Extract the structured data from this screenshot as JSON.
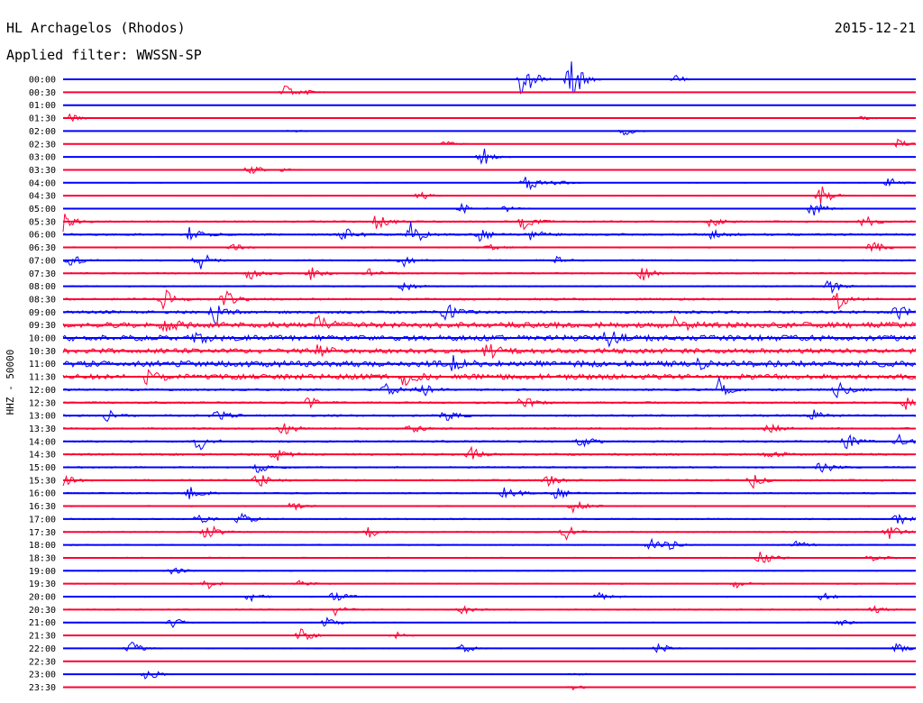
{
  "header": {
    "station": "HL Archagelos (Rhodos)",
    "date": "2015-12-21",
    "filter": "Applied filter: WWSSN-SP"
  },
  "colors": {
    "trace_a": "#0000ff",
    "trace_b": "#ff0033",
    "background": "#ffffff",
    "text": "#000000"
  },
  "chart_data": {
    "type": "line",
    "title": "HL Archagelos (Rhodos)",
    "subtitle": "Applied filter: WWSSN-SP",
    "ylabel": "HHZ - 50000",
    "xlabel": "",
    "grid": false,
    "row_interval_minutes": 30,
    "series": [
      {
        "name": "00:00",
        "color": "trace_a",
        "activity": 0.05,
        "events": [
          [
            0.54,
            7
          ],
          [
            0.595,
            8
          ],
          [
            0.72,
            1.2
          ]
        ]
      },
      {
        "name": "00:30",
        "color": "trace_b",
        "activity": 0.08,
        "events": [
          [
            0.26,
            2.5
          ],
          [
            0.29,
            0.6
          ]
        ]
      },
      {
        "name": "01:00",
        "color": "trace_a",
        "activity": 0.05,
        "events": []
      },
      {
        "name": "01:30",
        "color": "trace_b",
        "activity": 0.08,
        "events": [
          [
            0.01,
            1.2
          ],
          [
            0.94,
            0.6
          ]
        ]
      },
      {
        "name": "02:00",
        "color": "trace_a",
        "activity": 0.08,
        "events": [
          [
            0.66,
            1.2
          ],
          [
            0.27,
            0.5
          ]
        ]
      },
      {
        "name": "02:30",
        "color": "trace_b",
        "activity": 0.1,
        "events": [
          [
            0.45,
            0.8
          ],
          [
            0.98,
            1.6
          ]
        ]
      },
      {
        "name": "03:00",
        "color": "trace_a",
        "activity": 0.08,
        "events": [
          [
            0.492,
            3
          ]
        ]
      },
      {
        "name": "03:30",
        "color": "trace_b",
        "activity": 0.1,
        "events": [
          [
            0.22,
            1.8
          ],
          [
            0.26,
            0.6
          ]
        ]
      },
      {
        "name": "04:00",
        "color": "trace_a",
        "activity": 0.15,
        "events": [
          [
            0.545,
            3
          ],
          [
            0.97,
            1.5
          ],
          [
            0.58,
            1
          ]
        ]
      },
      {
        "name": "04:30",
        "color": "trace_b",
        "activity": 0.12,
        "events": [
          [
            0.42,
            1.4
          ],
          [
            0.89,
            3
          ]
        ]
      },
      {
        "name": "05:00",
        "color": "trace_a",
        "activity": 0.18,
        "events": [
          [
            0.47,
            1.5
          ],
          [
            0.88,
            2.5
          ],
          [
            0.52,
            0.8
          ]
        ]
      },
      {
        "name": "05:30",
        "color": "trace_b",
        "activity": 0.4,
        "events": [
          [
            0.0,
            3
          ],
          [
            0.37,
            2.5
          ],
          [
            0.54,
            2
          ],
          [
            0.76,
            1.5
          ],
          [
            0.94,
            2
          ]
        ]
      },
      {
        "name": "06:00",
        "color": "trace_a",
        "activity": 0.5,
        "events": [
          [
            0.15,
            2
          ],
          [
            0.41,
            4
          ],
          [
            0.33,
            2.5
          ],
          [
            0.49,
            2
          ],
          [
            0.55,
            1.5
          ],
          [
            0.76,
            1.5
          ]
        ]
      },
      {
        "name": "06:30",
        "color": "trace_b",
        "activity": 0.3,
        "events": [
          [
            0.2,
            1.5
          ],
          [
            0.5,
            1
          ],
          [
            0.95,
            2
          ]
        ]
      },
      {
        "name": "07:00",
        "color": "trace_a",
        "activity": 0.35,
        "events": [
          [
            0.01,
            2
          ],
          [
            0.16,
            3
          ],
          [
            0.4,
            1.5
          ],
          [
            0.58,
            1
          ]
        ]
      },
      {
        "name": "07:30",
        "color": "trace_b",
        "activity": 0.35,
        "events": [
          [
            0.22,
            2
          ],
          [
            0.29,
            2.5
          ],
          [
            0.68,
            2
          ],
          [
            0.36,
            1.5
          ]
        ]
      },
      {
        "name": "08:00",
        "color": "trace_a",
        "activity": 0.3,
        "events": [
          [
            0.4,
            1.5
          ],
          [
            0.9,
            2
          ]
        ]
      },
      {
        "name": "08:30",
        "color": "trace_b",
        "activity": 0.5,
        "events": [
          [
            0.12,
            3
          ],
          [
            0.19,
            2.5
          ],
          [
            0.91,
            2.5
          ]
        ]
      },
      {
        "name": "09:00",
        "color": "trace_a",
        "activity": 0.7,
        "events": [
          [
            0.18,
            3
          ],
          [
            0.45,
            2.5
          ],
          [
            0.98,
            2
          ]
        ]
      },
      {
        "name": "09:30",
        "color": "trace_b",
        "activity": 1.4,
        "events": [
          [
            0.12,
            2
          ],
          [
            0.3,
            2
          ],
          [
            0.72,
            2
          ]
        ]
      },
      {
        "name": "10:00",
        "color": "trace_a",
        "activity": 1.4,
        "events": [
          [
            0.16,
            2
          ],
          [
            0.64,
            2
          ]
        ]
      },
      {
        "name": "10:30",
        "color": "trace_b",
        "activity": 1.2,
        "events": [
          [
            0.3,
            2
          ],
          [
            0.5,
            2
          ]
        ]
      },
      {
        "name": "11:00",
        "color": "trace_a",
        "activity": 1.5,
        "events": [
          [
            0.46,
            2
          ],
          [
            0.74,
            2
          ]
        ]
      },
      {
        "name": "11:30",
        "color": "trace_b",
        "activity": 1.3,
        "events": [
          [
            0.1,
            2
          ],
          [
            0.4,
            2
          ]
        ]
      },
      {
        "name": "12:00",
        "color": "trace_a",
        "activity": 0.5,
        "events": [
          [
            0.38,
            2
          ],
          [
            0.42,
            2.5
          ],
          [
            0.77,
            3
          ],
          [
            0.91,
            2.5
          ]
        ]
      },
      {
        "name": "12:30",
        "color": "trace_b",
        "activity": 0.45,
        "events": [
          [
            0.29,
            1.5
          ],
          [
            0.54,
            2
          ],
          [
            0.99,
            2
          ]
        ]
      },
      {
        "name": "13:00",
        "color": "trace_a",
        "activity": 0.45,
        "events": [
          [
            0.05,
            2
          ],
          [
            0.18,
            2
          ],
          [
            0.45,
            1.5
          ],
          [
            0.88,
            1.5
          ]
        ]
      },
      {
        "name": "13:30",
        "color": "trace_b",
        "activity": 0.45,
        "events": [
          [
            0.26,
            2
          ],
          [
            0.41,
            1.5
          ],
          [
            0.83,
            1.5
          ]
        ]
      },
      {
        "name": "14:00",
        "color": "trace_a",
        "activity": 0.45,
        "events": [
          [
            0.16,
            2.5
          ],
          [
            0.61,
            2
          ],
          [
            0.92,
            2
          ],
          [
            0.98,
            2.5
          ]
        ]
      },
      {
        "name": "14:30",
        "color": "trace_b",
        "activity": 0.5,
        "events": [
          [
            0.25,
            2
          ],
          [
            0.48,
            2
          ],
          [
            0.83,
            1.5
          ]
        ]
      },
      {
        "name": "15:00",
        "color": "trace_a",
        "activity": 0.4,
        "events": [
          [
            0.23,
            1.5
          ],
          [
            0.89,
            2
          ]
        ]
      },
      {
        "name": "15:30",
        "color": "trace_b",
        "activity": 0.4,
        "events": [
          [
            0.0,
            2
          ],
          [
            0.23,
            2
          ],
          [
            0.57,
            1.5
          ],
          [
            0.81,
            2
          ]
        ]
      },
      {
        "name": "16:00",
        "color": "trace_a",
        "activity": 0.35,
        "events": [
          [
            0.15,
            2
          ],
          [
            0.52,
            2.5
          ],
          [
            0.58,
            2
          ]
        ]
      },
      {
        "name": "16:30",
        "color": "trace_b",
        "activity": 0.3,
        "events": [
          [
            0.27,
            1.5
          ],
          [
            0.6,
            2
          ]
        ]
      },
      {
        "name": "17:00",
        "color": "trace_a",
        "activity": 0.35,
        "events": [
          [
            0.16,
            1.5
          ],
          [
            0.21,
            2.5
          ],
          [
            0.98,
            2
          ]
        ]
      },
      {
        "name": "17:30",
        "color": "trace_b",
        "activity": 0.3,
        "events": [
          [
            0.17,
            2.5
          ],
          [
            0.36,
            1.5
          ],
          [
            0.59,
            2
          ],
          [
            0.97,
            2
          ]
        ]
      },
      {
        "name": "18:00",
        "color": "trace_a",
        "activity": 0.3,
        "events": [
          [
            0.69,
            2
          ],
          [
            0.71,
            1.5
          ],
          [
            0.86,
            1.2
          ]
        ]
      },
      {
        "name": "18:30",
        "color": "trace_b",
        "activity": 0.3,
        "events": [
          [
            0.82,
            2
          ],
          [
            0.95,
            1.5
          ]
        ]
      },
      {
        "name": "19:00",
        "color": "trace_a",
        "activity": 0.2,
        "events": [
          [
            0.13,
            1
          ]
        ]
      },
      {
        "name": "19:30",
        "color": "trace_b",
        "activity": 0.25,
        "events": [
          [
            0.17,
            1.5
          ],
          [
            0.28,
            1
          ],
          [
            0.79,
            1
          ]
        ]
      },
      {
        "name": "20:00",
        "color": "trace_a",
        "activity": 0.3,
        "events": [
          [
            0.22,
            1.5
          ],
          [
            0.32,
            1.8
          ],
          [
            0.63,
            1.2
          ],
          [
            0.89,
            1.2
          ]
        ]
      },
      {
        "name": "20:30",
        "color": "trace_b",
        "activity": 0.3,
        "events": [
          [
            0.32,
            1.5
          ],
          [
            0.47,
            1.2
          ],
          [
            0.95,
            1.2
          ]
        ]
      },
      {
        "name": "21:00",
        "color": "trace_a",
        "activity": 0.2,
        "events": [
          [
            0.13,
            1.5
          ],
          [
            0.31,
            1.5
          ],
          [
            0.91,
            1
          ]
        ]
      },
      {
        "name": "21:30",
        "color": "trace_b",
        "activity": 0.2,
        "events": [
          [
            0.28,
            2
          ],
          [
            0.39,
            1
          ]
        ]
      },
      {
        "name": "22:00",
        "color": "trace_a",
        "activity": 0.15,
        "events": [
          [
            0.08,
            2
          ],
          [
            0.47,
            1.5
          ],
          [
            0.7,
            1.5
          ],
          [
            0.98,
            1.5
          ]
        ]
      },
      {
        "name": "22:30",
        "color": "trace_b",
        "activity": 0.08,
        "events": []
      },
      {
        "name": "23:00",
        "color": "trace_a",
        "activity": 0.1,
        "events": [
          [
            0.1,
            2
          ],
          [
            0.6,
            0.8
          ]
        ]
      },
      {
        "name": "23:30",
        "color": "trace_b",
        "activity": 0.08,
        "events": [
          [
            0.6,
            0.8
          ]
        ]
      }
    ]
  }
}
